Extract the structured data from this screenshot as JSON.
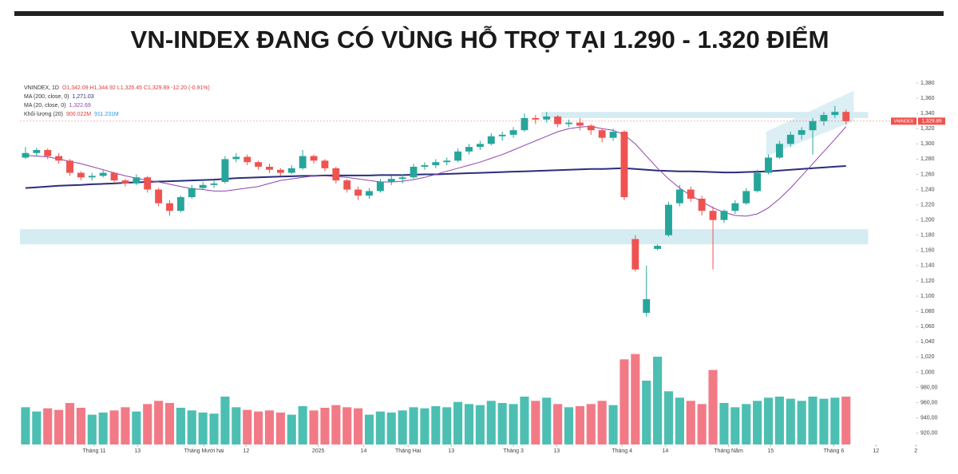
{
  "chart_data": {
    "type": "candlestick",
    "title": "VN-INDEX ĐANG CÓ VÙNG HỖ TRỢ TẠI 1.290 - 1.320 ĐIỂM",
    "legend": [
      {
        "label": "VNINDEX, 1D",
        "values": [
          "O1,342.09 H1,344.92 L1,325.45 C1,329.89 -12.20 (-0.91%)"
        ],
        "colors": [
          "#e53935"
        ]
      },
      {
        "label": "MA (200, close, 0)",
        "values": [
          "1,271.03"
        ],
        "colors": [
          "#2a2e7a"
        ]
      },
      {
        "label": "MA (20, close, 0)",
        "values": [
          "1,322.69"
        ],
        "colors": [
          "#8e44ad"
        ]
      },
      {
        "label": "Khối lượng (20)",
        "values": [
          "900.022M",
          "911.231M"
        ],
        "colors": [
          "#e53935",
          "#2196f3"
        ]
      }
    ],
    "open": [
      1282,
      1288,
      1292,
      1284,
      1278,
      1262,
      1256,
      1258,
      1262,
      1252,
      1248,
      1256,
      1240,
      1222,
      1212,
      1230,
      1242,
      1246,
      1250,
      1280,
      1283,
      1276,
      1270,
      1266,
      1262,
      1268,
      1284,
      1278,
      1268,
      1252,
      1240,
      1232,
      1238,
      1250,
      1254,
      1256,
      1270,
      1272,
      1276,
      1278,
      1290,
      1296,
      1300,
      1310,
      1312,
      1318,
      1334,
      1332,
      1336,
      1326,
      1328,
      1324,
      1318,
      1308,
      1316,
      1175,
      1078,
      1162,
      1180,
      1222,
      1240,
      1228,
      1212,
      1200,
      1212,
      1222,
      1238,
      1262,
      1282,
      1300,
      1312,
      1318,
      1330,
      1338,
      1342.09
    ],
    "high": [
      1296,
      1295,
      1294,
      1288,
      1280,
      1264,
      1262,
      1266,
      1263,
      1254,
      1260,
      1258,
      1242,
      1226,
      1232,
      1246,
      1250,
      1252,
      1284,
      1288,
      1286,
      1278,
      1274,
      1268,
      1272,
      1292,
      1286,
      1280,
      1270,
      1254,
      1244,
      1242,
      1254,
      1258,
      1260,
      1274,
      1276,
      1280,
      1282,
      1294,
      1300,
      1304,
      1314,
      1316,
      1322,
      1340,
      1338,
      1342,
      1338,
      1332,
      1334,
      1326,
      1320,
      1320,
      1318,
      1180,
      1140,
      1168,
      1224,
      1246,
      1244,
      1232,
      1218,
      1214,
      1226,
      1242,
      1266,
      1286,
      1304,
      1316,
      1322,
      1334,
      1342,
      1350,
      1344.92
    ],
    "low": [
      1280,
      1284,
      1280,
      1274,
      1258,
      1252,
      1252,
      1256,
      1248,
      1244,
      1246,
      1236,
      1218,
      1206,
      1210,
      1228,
      1240,
      1242,
      1248,
      1276,
      1272,
      1266,
      1262,
      1258,
      1260,
      1266,
      1274,
      1264,
      1248,
      1236,
      1226,
      1228,
      1236,
      1246,
      1248,
      1254,
      1266,
      1268,
      1272,
      1276,
      1286,
      1292,
      1298,
      1304,
      1308,
      1316,
      1326,
      1328,
      1322,
      1322,
      1318,
      1312,
      1302,
      1304,
      1226,
      1132,
      1073,
      1160,
      1178,
      1218,
      1224,
      1206,
      1135,
      1196,
      1208,
      1220,
      1236,
      1260,
      1280,
      1296,
      1306,
      1286,
      1324,
      1334,
      1325.45
    ],
    "close": [
      1288,
      1292,
      1284,
      1278,
      1262,
      1256,
      1258,
      1262,
      1252,
      1248,
      1256,
      1240,
      1222,
      1212,
      1230,
      1242,
      1246,
      1248,
      1280,
      1283,
      1276,
      1270,
      1266,
      1262,
      1268,
      1284,
      1278,
      1268,
      1252,
      1240,
      1232,
      1238,
      1250,
      1254,
      1256,
      1270,
      1272,
      1276,
      1278,
      1290,
      1296,
      1300,
      1310,
      1312,
      1318,
      1334,
      1332,
      1336,
      1326,
      1328,
      1324,
      1318,
      1308,
      1316,
      1230,
      1135,
      1096,
      1166,
      1220,
      1240,
      1228,
      1212,
      1200,
      1212,
      1222,
      1238,
      1262,
      1282,
      1300,
      1312,
      1318,
      1330,
      1338,
      1342.09,
      1329.89
    ],
    "volume": [
      700,
      620,
      680,
      650,
      780,
      690,
      560,
      600,
      640,
      700,
      620,
      760,
      820,
      780,
      690,
      640,
      600,
      580,
      900,
      700,
      650,
      620,
      640,
      600,
      560,
      720,
      640,
      690,
      740,
      700,
      680,
      560,
      620,
      600,
      640,
      700,
      680,
      720,
      700,
      800,
      760,
      740,
      820,
      780,
      760,
      900,
      820,
      880,
      760,
      700,
      720,
      760,
      820,
      740,
      1600,
      1700,
      1200,
      1650,
      1000,
      880,
      820,
      760,
      1400,
      780,
      700,
      760,
      820,
      880,
      900,
      860,
      820,
      900,
      860,
      880,
      900.022
    ],
    "moving_averages": [
      {
        "name": "MA (200, close, 0)",
        "color": "#2a2e7a",
        "width": 2,
        "values": [
          1242,
          1243,
          1244,
          1245,
          1245.5,
          1246,
          1247,
          1247.5,
          1248,
          1249,
          1249.5,
          1250,
          1250.5,
          1251,
          1251.5,
          1252,
          1252.5,
          1253,
          1254,
          1255,
          1255.5,
          1256,
          1256.5,
          1257,
          1257.5,
          1258,
          1258,
          1258.5,
          1258.5,
          1258.5,
          1258.5,
          1258.5,
          1259,
          1259,
          1259,
          1259.5,
          1260,
          1260,
          1260.5,
          1261,
          1261.5,
          1262,
          1262.5,
          1263,
          1263.5,
          1264,
          1264.5,
          1265,
          1265.5,
          1266,
          1266.5,
          1267,
          1267,
          1267.5,
          1268,
          1267,
          1266,
          1265,
          1264.5,
          1264,
          1264,
          1263.5,
          1263,
          1262.5,
          1262.5,
          1263,
          1263.5,
          1264,
          1265,
          1266,
          1267,
          1268,
          1269,
          1270,
          1271.03
        ]
      },
      {
        "name": "MA (20, close, 0)",
        "color": "#8e44ad",
        "width": 1,
        "values": [
          1285,
          1284,
          1283,
          1280,
          1277,
          1274,
          1270,
          1266,
          1262,
          1258,
          1255,
          1252,
          1250,
          1247,
          1244,
          1241,
          1240,
          1238,
          1238,
          1240,
          1242,
          1244,
          1248,
          1252,
          1254,
          1256,
          1258,
          1258,
          1257,
          1256,
          1254,
          1252,
          1250,
          1250,
          1251,
          1253,
          1256,
          1260,
          1264,
          1268,
          1272,
          1276,
          1281,
          1286,
          1292,
          1298,
          1304,
          1310,
          1316,
          1320,
          1322,
          1323,
          1320,
          1318,
          1312,
          1300,
          1284,
          1268,
          1254,
          1242,
          1232,
          1224,
          1216,
          1210,
          1206,
          1205,
          1208,
          1216,
          1228,
          1242,
          1258,
          1274,
          1290,
          1306,
          1322.69
        ]
      }
    ],
    "colors": {
      "up": "#26a69a",
      "down": "#ef5350",
      "volume_up": "#4cbfb2",
      "volume_down": "#f27a86",
      "zone": "#d5ecf3"
    },
    "zones": [
      {
        "ylim": [
          1168,
          1188
        ],
        "xlim": [
          -0.5,
          76
        ]
      },
      {
        "ylim": [
          1334,
          1342
        ],
        "xlim": [
          46.5,
          76
        ]
      }
    ],
    "channel": {
      "x": [
        66.8,
        74.7
      ],
      "lower": [
        1284,
        1330
      ],
      "upper": [
        1316,
        1370
      ]
    },
    "last_price": {
      "name": "VNINDEX",
      "value": 1329.89,
      "label": "1,329.89"
    },
    "xlim": [
      -0.5,
      80.5
    ],
    "xticks": [
      {
        "value": 6.2,
        "label": "Tháng 11"
      },
      {
        "value": 10.1,
        "label": "13"
      },
      {
        "value": 16.1,
        "label": "Tháng Mười hai"
      },
      {
        "value": 19.9,
        "label": "12"
      },
      {
        "value": 26.4,
        "label": "2025"
      },
      {
        "value": 30.5,
        "label": "14"
      },
      {
        "value": 34.5,
        "label": "Tháng Hai"
      },
      {
        "value": 38.4,
        "label": "13"
      },
      {
        "value": 44.0,
        "label": "Tháng 3"
      },
      {
        "value": 47.9,
        "label": "13"
      },
      {
        "value": 53.8,
        "label": "Tháng 4"
      },
      {
        "value": 57.7,
        "label": "14"
      },
      {
        "value": 63.4,
        "label": "Tháng Năm"
      },
      {
        "value": 67.2,
        "label": "15"
      },
      {
        "value": 72.9,
        "label": "Tháng 6"
      },
      {
        "value": 76.7,
        "label": "12"
      },
      {
        "value": 80.3,
        "label": "2"
      }
    ],
    "ylim": [
      905,
      1390
    ],
    "yticks": [
      {
        "value": 920,
        "label": "920,00"
      },
      {
        "value": 940,
        "label": "940,00"
      },
      {
        "value": 960,
        "label": "960,00"
      },
      {
        "value": 980,
        "label": "980,00"
      },
      {
        "value": 1000,
        "label": "1,000"
      },
      {
        "value": 1020,
        "label": "1,020"
      },
      {
        "value": 1040,
        "label": "1,040"
      },
      {
        "value": 1060,
        "label": "1,060"
      },
      {
        "value": 1080,
        "label": "1,080"
      },
      {
        "value": 1100,
        "label": "1,100"
      },
      {
        "value": 1120,
        "label": "1,120"
      },
      {
        "value": 1140,
        "label": "1,140"
      },
      {
        "value": 1160,
        "label": "1,160"
      },
      {
        "value": 1180,
        "label": "1,180"
      },
      {
        "value": 1200,
        "label": "1,200"
      },
      {
        "value": 1220,
        "label": "1,220"
      },
      {
        "value": 1240,
        "label": "1,240"
      },
      {
        "value": 1260,
        "label": "1,260"
      },
      {
        "value": 1280,
        "label": "1,280"
      },
      {
        "value": 1300,
        "label": "1,300"
      },
      {
        "value": 1320,
        "label": "1,320"
      },
      {
        "value": 1340,
        "label": "1,340"
      },
      {
        "value": 1360,
        "label": "1,360"
      },
      {
        "value": 1380,
        "label": "1,380"
      }
    ],
    "vlim": [
      0,
      2400
    ]
  }
}
